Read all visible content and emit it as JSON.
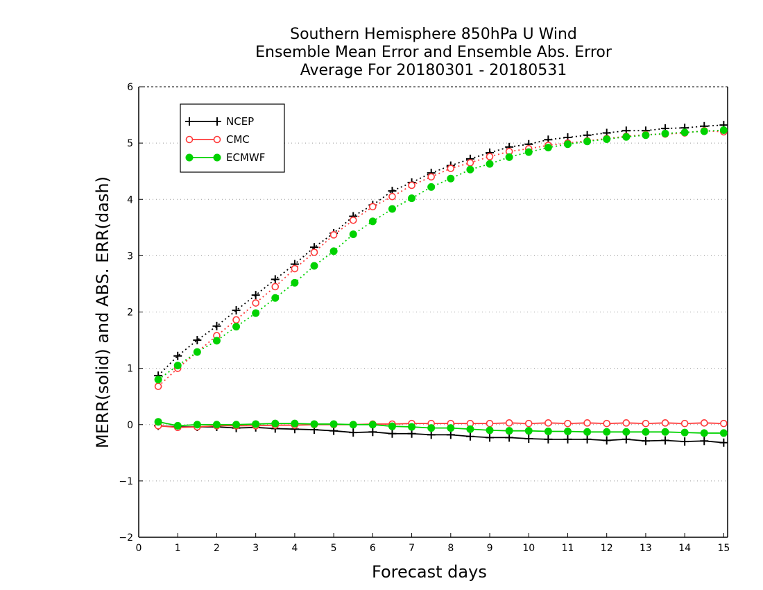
{
  "chart_data": {
    "type": "line",
    "title": [
      "Southern Hemisphere 850hPa U Wind",
      "Ensemble Mean Error and Ensemble Abs. Error",
      "Average For 20180301 - 20180531"
    ],
    "xlabel": "Forecast days",
    "ylabel": "MERR(solid) and ABS. ERR(dash)",
    "xlim": [
      0,
      15.1
    ],
    "ylim": [
      -2,
      6
    ],
    "x_ticks": [
      "0",
      "1",
      "2",
      "3",
      "4",
      "5",
      "6",
      "7",
      "8",
      "9",
      "10",
      "11",
      "12",
      "13",
      "14",
      "15"
    ],
    "y_ticks": [
      "−2",
      "−1",
      "0",
      "1",
      "2",
      "3",
      "4",
      "5",
      "6"
    ],
    "grid": "horizontal dotted",
    "legend_position": "top-left",
    "x": [
      0.5,
      1,
      1.5,
      2,
      2.5,
      3,
      3.5,
      4,
      4.5,
      5,
      5.5,
      6,
      6.5,
      7,
      7.5,
      8,
      8.5,
      9,
      9.5,
      10,
      10.5,
      11,
      11.5,
      12,
      12.5,
      13,
      13.5,
      14,
      14.5,
      15
    ],
    "series": [
      {
        "name": "NCEP",
        "color": "#000000",
        "marker": "plus",
        "abs_error": [
          0.87,
          1.22,
          1.5,
          1.75,
          2.03,
          2.3,
          2.58,
          2.85,
          3.15,
          3.4,
          3.7,
          3.9,
          4.15,
          4.3,
          4.47,
          4.6,
          4.72,
          4.83,
          4.93,
          4.98,
          5.06,
          5.1,
          5.14,
          5.18,
          5.22,
          5.22,
          5.26,
          5.27,
          5.3,
          5.32
        ],
        "mean_error": [
          -0.02,
          -0.04,
          -0.04,
          -0.04,
          -0.06,
          -0.05,
          -0.07,
          -0.08,
          -0.09,
          -0.11,
          -0.14,
          -0.13,
          -0.16,
          -0.16,
          -0.18,
          -0.18,
          -0.21,
          -0.23,
          -0.23,
          -0.25,
          -0.26,
          -0.26,
          -0.26,
          -0.28,
          -0.26,
          -0.29,
          -0.28,
          -0.3,
          -0.29,
          -0.32
        ]
      },
      {
        "name": "CMC",
        "color": "#ff3a3a",
        "marker": "open-circle",
        "abs_error": [
          0.68,
          1.0,
          1.29,
          1.58,
          1.86,
          2.16,
          2.45,
          2.77,
          3.06,
          3.37,
          3.63,
          3.87,
          4.05,
          4.25,
          4.4,
          4.55,
          4.65,
          4.76,
          4.85,
          4.9,
          4.96,
          5.0,
          5.04,
          5.08,
          5.12,
          5.15,
          5.16,
          5.18,
          5.22,
          5.2
        ],
        "mean_error": [
          -0.02,
          -0.05,
          -0.04,
          -0.02,
          -0.02,
          -0.02,
          -0.01,
          -0.01,
          0.0,
          0.0,
          0.0,
          0.01,
          0.01,
          0.02,
          0.02,
          0.02,
          0.02,
          0.02,
          0.03,
          0.02,
          0.03,
          0.02,
          0.03,
          0.02,
          0.03,
          0.02,
          0.03,
          0.02,
          0.03,
          0.02
        ]
      },
      {
        "name": "ECMWF",
        "color": "#00d200",
        "marker": "filled-circle",
        "abs_error": [
          0.8,
          1.05,
          1.29,
          1.49,
          1.74,
          1.98,
          2.25,
          2.52,
          2.82,
          3.08,
          3.38,
          3.61,
          3.83,
          4.02,
          4.22,
          4.37,
          4.53,
          4.63,
          4.75,
          4.84,
          4.92,
          4.98,
          5.03,
          5.07,
          5.11,
          5.14,
          5.17,
          5.19,
          5.21,
          5.23
        ],
        "mean_error": [
          0.05,
          -0.02,
          0.0,
          0.0,
          0.0,
          0.01,
          0.02,
          0.02,
          0.01,
          0.01,
          0.0,
          0.0,
          -0.03,
          -0.04,
          -0.06,
          -0.06,
          -0.08,
          -0.1,
          -0.11,
          -0.11,
          -0.12,
          -0.12,
          -0.13,
          -0.13,
          -0.13,
          -0.13,
          -0.13,
          -0.14,
          -0.15,
          -0.15
        ]
      }
    ]
  }
}
